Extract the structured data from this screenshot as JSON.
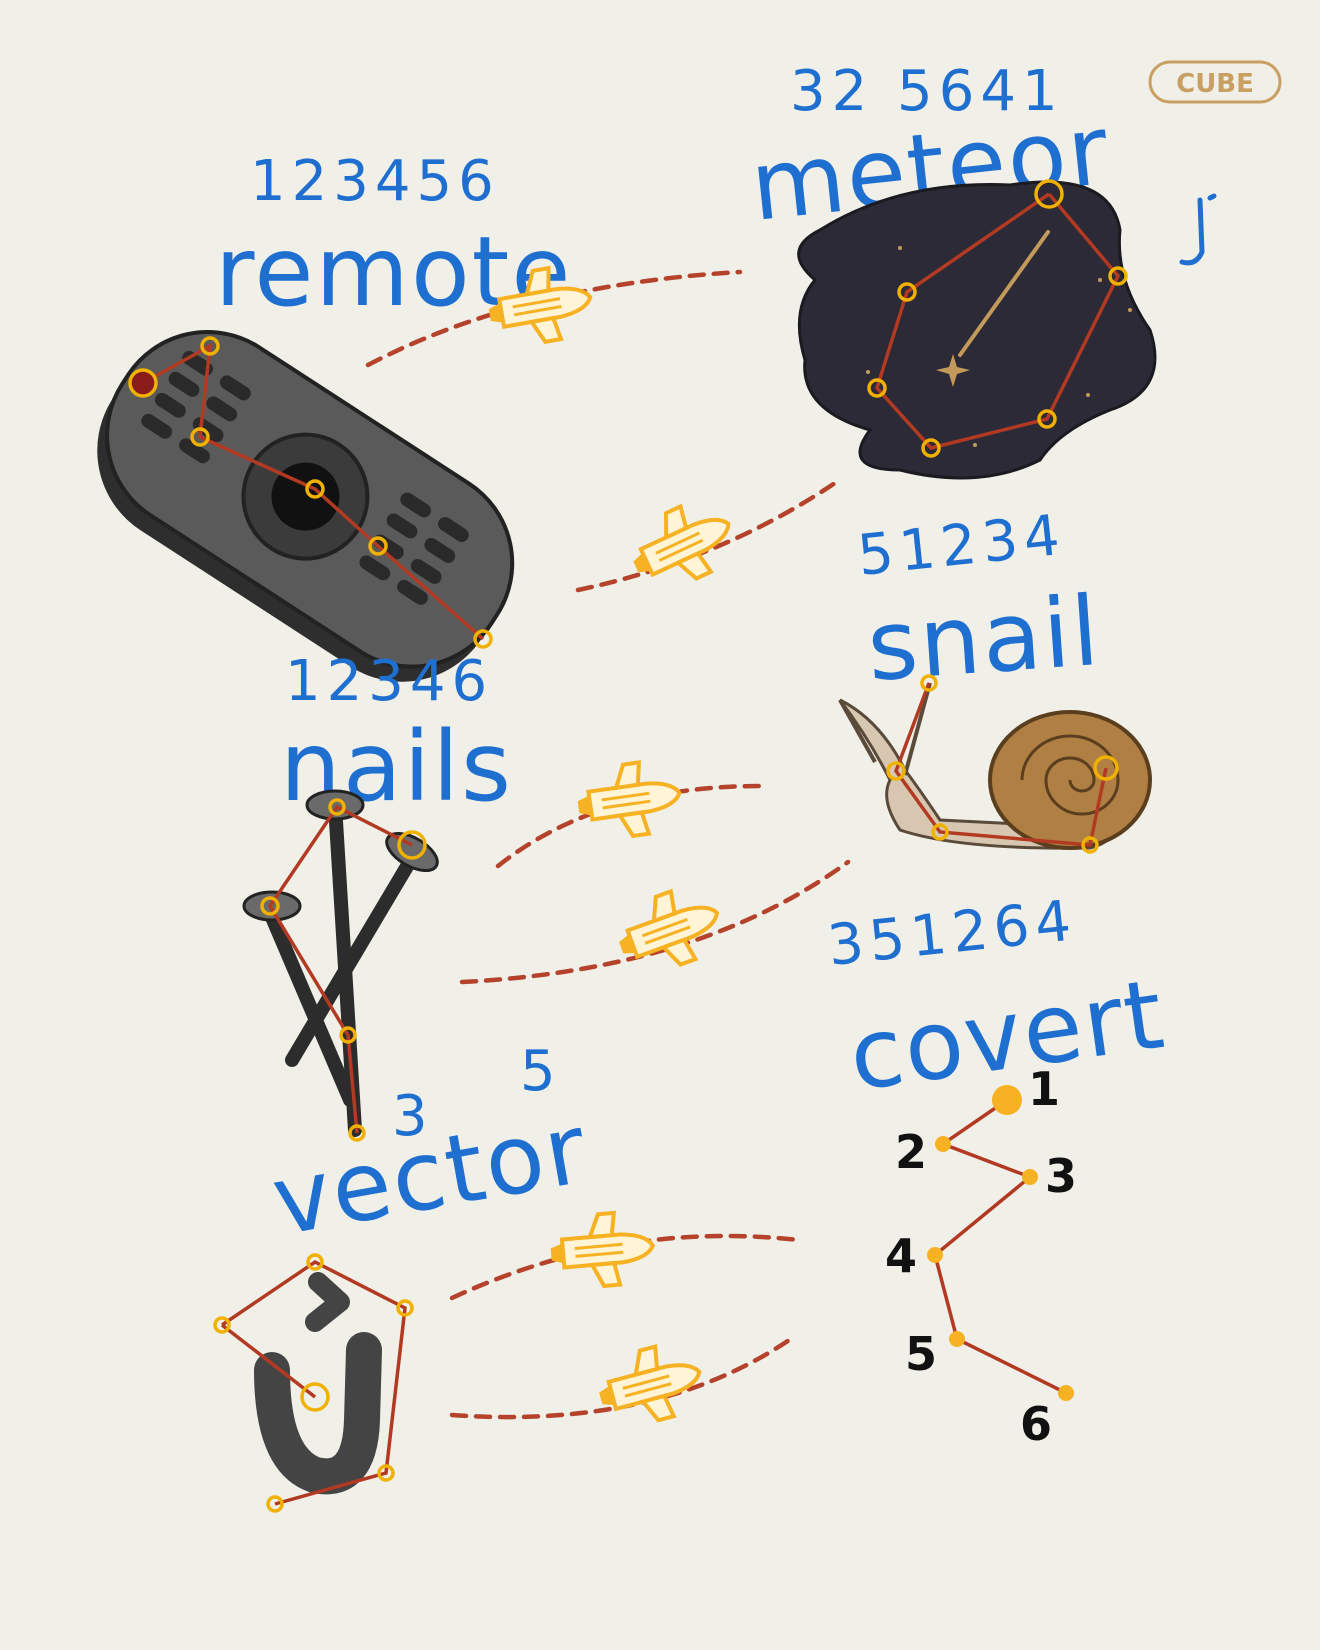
{
  "watermark": "CUBE",
  "words": {
    "remote": {
      "word": "remote",
      "digits": "123456"
    },
    "meteor": {
      "word": "meteor",
      "digits": "32 5641"
    },
    "snail": {
      "word": "snail",
      "digits": "51234"
    },
    "nails": {
      "word": "nails",
      "digits": "12346"
    },
    "covert": {
      "word": "covert",
      "digits": "351264"
    },
    "vector": {
      "word": "vector",
      "digit_3": "3",
      "digit_5": "5"
    }
  },
  "covert_points": [
    "1",
    "2",
    "3",
    "4",
    "5",
    "6"
  ],
  "colors": {
    "background": "#f0efe8",
    "handwriting": "#1e6fd0",
    "constellation_line": "#b33a22",
    "node": "#f0b100",
    "dashed_path": "#b5432c",
    "shuttle": "#f6b223"
  },
  "icons": [
    "remote-icon",
    "meteor-sky-icon",
    "snail-icon",
    "nails-icon",
    "letter-v-icon",
    "shuttle-icon"
  ]
}
